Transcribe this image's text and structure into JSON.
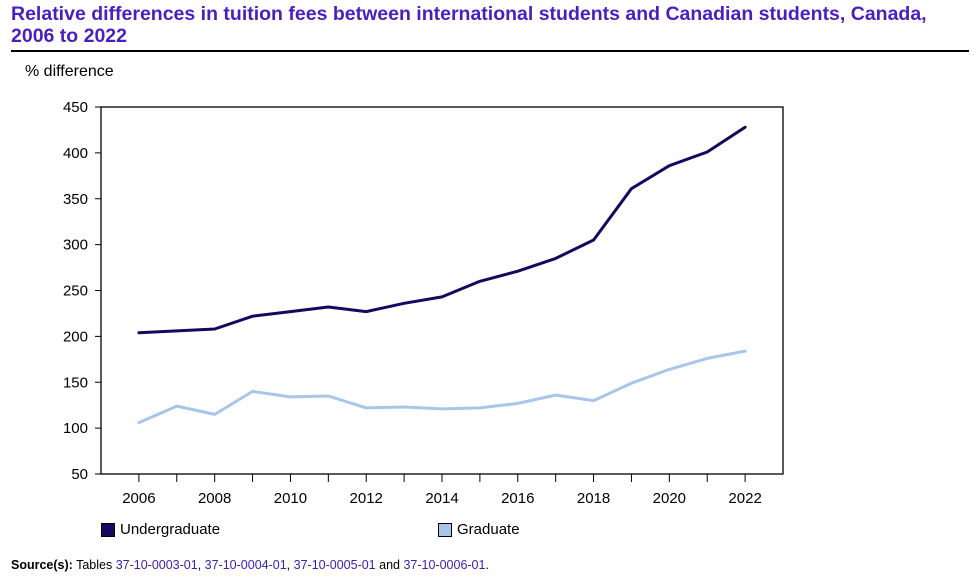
{
  "title": "Relative differences in tuition fees between international students and Canadian students, Canada, 2006 to 2022",
  "chart_data": {
    "type": "line",
    "ylabel": "% difference",
    "xlabel": "",
    "ylim": [
      50,
      450
    ],
    "xlim": [
      2005,
      2023
    ],
    "yticks": [
      50,
      100,
      150,
      200,
      250,
      300,
      350,
      400,
      450
    ],
    "xticks": [
      2006,
      2008,
      2010,
      2012,
      2014,
      2016,
      2018,
      2020,
      2022
    ],
    "x": [
      2006,
      2007,
      2008,
      2009,
      2010,
      2011,
      2012,
      2013,
      2014,
      2015,
      2016,
      2017,
      2018,
      2019,
      2020,
      2021,
      2022
    ],
    "series": [
      {
        "name": "Undergraduate",
        "color": "#16085e",
        "values": [
          204,
          206,
          208,
          222,
          227,
          232,
          227,
          236,
          243,
          260,
          271,
          285,
          305,
          361,
          386,
          401,
          428
        ]
      },
      {
        "name": "Graduate",
        "color": "#a9c6ea",
        "values": [
          106,
          124,
          115,
          140,
          134,
          135,
          122,
          123,
          121,
          122,
          127,
          136,
          130,
          149,
          164,
          176,
          184
        ]
      }
    ],
    "grid": false,
    "legend_position": "bottom"
  },
  "source": {
    "label": "Source(s):",
    "prefix": " Tables ",
    "tables": [
      "37-10-0003-01",
      "37-10-0004-01",
      "37-10-0005-01",
      "37-10-0006-01"
    ],
    "sep1": ", ",
    "sep2": ", ",
    "sep3": " and ",
    "suffix": "."
  }
}
